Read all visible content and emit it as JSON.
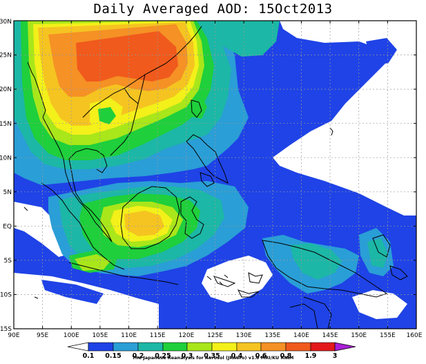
{
  "title": "Daily Averaged AOD: 15Oct2013",
  "credit": "The Japanese Reanalysis for Aerosol (JRAero) v1.0 MRI/KU RIAM",
  "colors": {
    "background_low": "#ffffff",
    "c0": "#1f43e6",
    "c1": "#2a9ed6",
    "c2": "#1cb7a6",
    "c3": "#1fcf3b",
    "c4": "#a9e61a",
    "c5": "#f3f01a",
    "c6": "#f5c421",
    "c7": "#f59125",
    "c8": "#f05a1c",
    "c9": "#e3191c",
    "c10": "#a91fd6",
    "coastline": "#000000",
    "grid": "#9a9a9a"
  },
  "map": {
    "lon_range": [
      90,
      160
    ],
    "lat_range": [
      -15,
      30
    ],
    "lon_ticks": [
      "90E",
      "95E",
      "100E",
      "105E",
      "110E",
      "115E",
      "120E",
      "125E",
      "130E",
      "135E",
      "140E",
      "145E",
      "150E",
      "155E",
      "160E"
    ],
    "lat_ticks": [
      "15S",
      "10S",
      "5S",
      "EQ",
      "5N",
      "10N",
      "15N",
      "20N",
      "25N",
      "30N"
    ],
    "grid": true
  },
  "colorbar": {
    "levels": [
      "0.1",
      "0.15",
      "0.2",
      "0.25",
      "0.3",
      "0.35",
      "0.4",
      "0.6",
      "0.8",
      "1.9",
      "3"
    ]
  }
}
